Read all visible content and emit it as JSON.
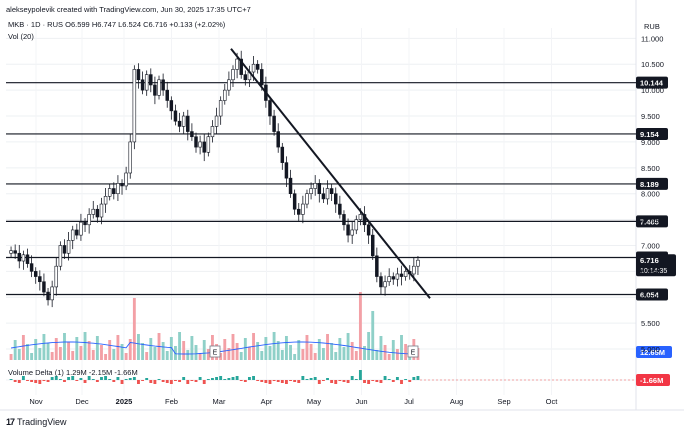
{
  "header": {
    "line1": "alekseypolevik created with TradingView.com, Jun 30, 2025 17:35 UTC+7",
    "symbol_line": "MKB · 1D · RUS",
    "ohlc": {
      "o": "O6.599",
      "h": "H6.747",
      "l": "L6.524",
      "c": "C6.716",
      "chg": "+0.133 (+2.02%)"
    },
    "vol_label": "Vol (20)",
    "currency": "RUB"
  },
  "volume_delta": {
    "label": "Volume Delta (1)",
    "v1": "1.29M",
    "v2": "-2.15M",
    "v3": "-1.66M"
  },
  "brand": {
    "text": "TradingView"
  },
  "chart_data": {
    "type": "candlestick",
    "symbol": "MKB",
    "interval": "1D",
    "exchange": "RUS",
    "currency": "RUB",
    "ylim": [
      4.75,
      11.2
    ],
    "y_ticks": [
      "11.000",
      "10.500",
      "10.000",
      "9.500",
      "9.000",
      "8.500",
      "8.000",
      "7.500",
      "7.000",
      "6.500",
      "6.000",
      "5.500",
      "5.000"
    ],
    "x_ticks": [
      "Nov",
      "Dec",
      "2025",
      "Feb",
      "Mar",
      "Apr",
      "May",
      "Jun",
      "Jul",
      "Aug",
      "Sep",
      "Oct"
    ],
    "horizontal_levels": [
      {
        "value": 10.144,
        "label": "10.144"
      },
      {
        "value": 9.154,
        "label": "9.154"
      },
      {
        "value": 8.189,
        "label": "8.189"
      },
      {
        "value": 7.465,
        "label": "7.465"
      },
      {
        "value": 6.768,
        "label": "6.768"
      },
      {
        "value": 6.054,
        "label": "6.054"
      }
    ],
    "trendline": {
      "from": {
        "date": "2025-03-18",
        "value": 10.8
      },
      "to": {
        "date": "2025-07-02",
        "value": 5.98
      }
    },
    "last_price": {
      "value": 6.716,
      "label": "6.716",
      "countdown": "10:14:35",
      "color": "#131722"
    },
    "volume": {
      "last_label": "12.65M",
      "up_color": "#f3a0a6",
      "down_color": "#8fd0c8",
      "ma_color": "#2962ff"
    },
    "volume_delta_last_label": "-1.66M",
    "earnings_markers": [
      "E",
      "E"
    ],
    "accent_color": "#131722",
    "up_candle_color": "#ffffff",
    "down_candle_color": "#131722",
    "grid": true,
    "candle_series": [
      6.9,
      6.85,
      6.7,
      6.82,
      6.65,
      6.5,
      6.4,
      6.3,
      6.1,
      5.95,
      6.2,
      6.6,
      7.0,
      6.85,
      7.1,
      7.3,
      7.2,
      7.45,
      7.4,
      7.6,
      7.7,
      7.55,
      7.8,
      7.95,
      8.1,
      8.0,
      8.2,
      8.15,
      8.4,
      9.0,
      10.4,
      10.2,
      10.0,
      10.3,
      10.1,
      9.9,
      10.2,
      10.0,
      9.8,
      9.6,
      9.4,
      9.3,
      9.5,
      9.2,
      9.1,
      8.9,
      9.0,
      8.8,
      9.1,
      9.3,
      9.5,
      9.8,
      10.0,
      10.2,
      10.4,
      10.6,
      10.3,
      10.2,
      10.35,
      10.5,
      10.4,
      10.1,
      9.8,
      9.5,
      9.2,
      8.9,
      8.6,
      8.3,
      8.0,
      7.7,
      7.6,
      7.8,
      8.0,
      8.1,
      8.2,
      8.0,
      7.9,
      8.1,
      8.0,
      7.8,
      7.6,
      7.4,
      7.2,
      7.3,
      7.5,
      7.6,
      7.4,
      7.2,
      6.8,
      6.4,
      6.2,
      6.3,
      6.4,
      6.35,
      6.45,
      6.4,
      6.5,
      6.45,
      6.6,
      6.716
    ]
  }
}
